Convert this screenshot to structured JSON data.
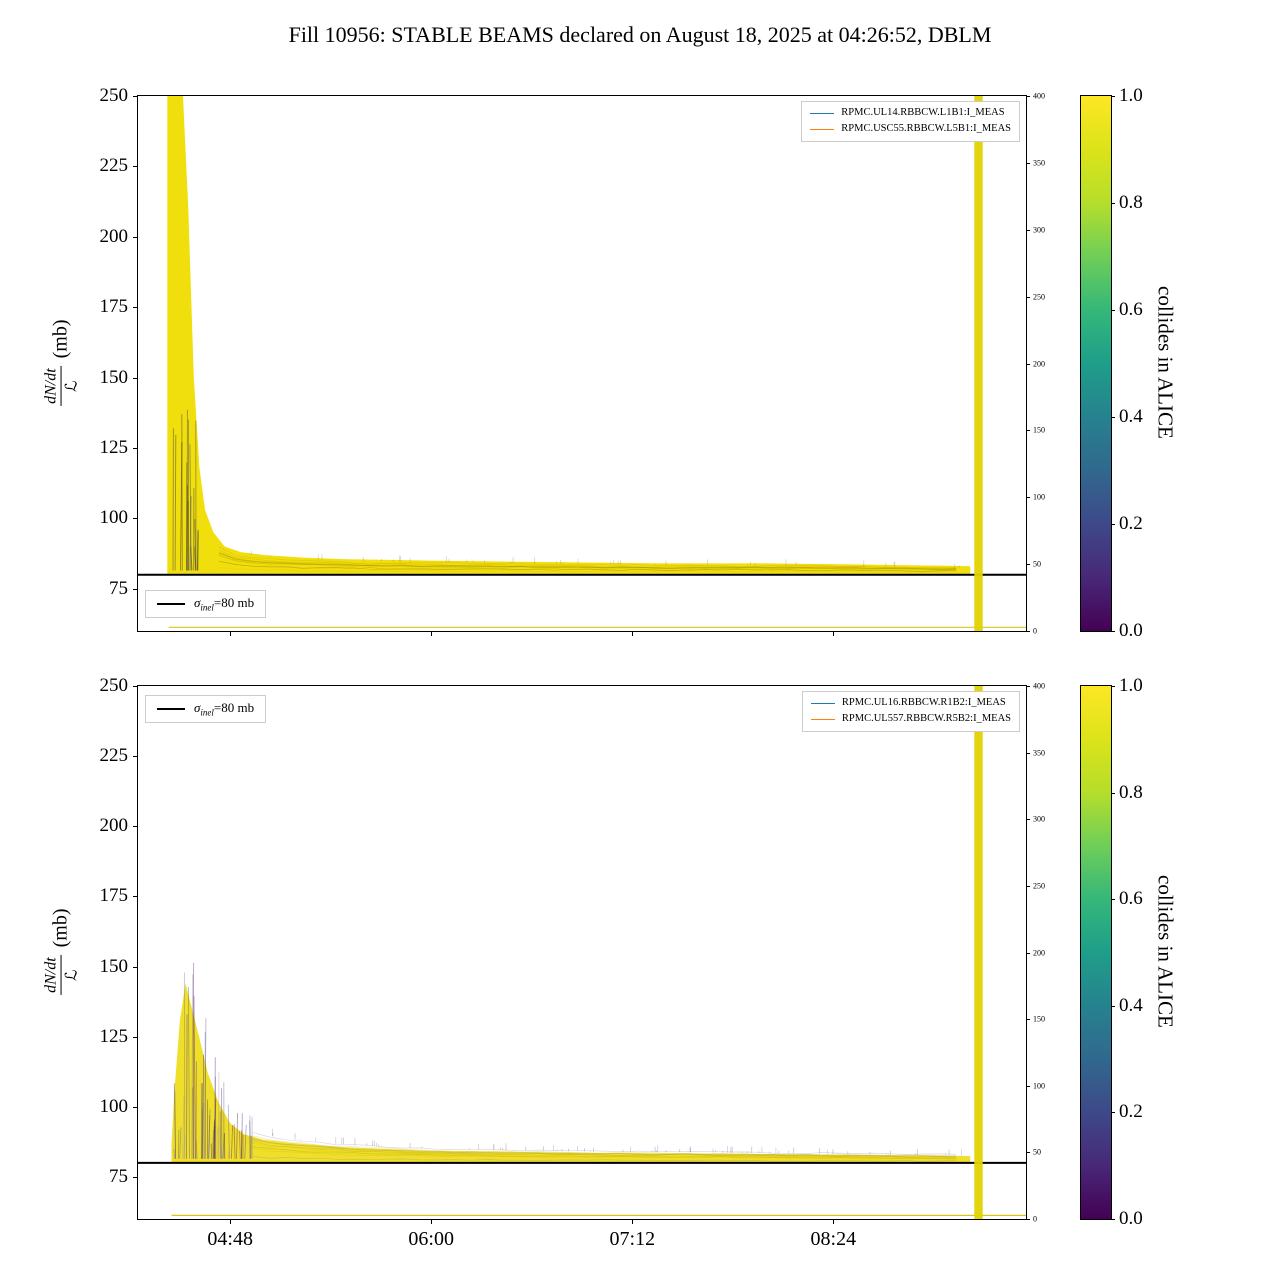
{
  "title": "Fill 10956: STABLE BEAMS declared on August 18, 2025 at 04:26:52, DBLM",
  "ylabel": {
    "numerator": "dN/dt",
    "denominator": "ℒ",
    "unit": "(mb)"
  },
  "sigma_legend": {
    "sigma": "σ",
    "subscript": "inel",
    "suffix": "=80 mb"
  },
  "colorbar": {
    "label": "collides in ALICE",
    "ticks": [
      {
        "label": "1.0",
        "value": 1.0
      },
      {
        "label": "0.8",
        "value": 0.8
      },
      {
        "label": "0.6",
        "value": 0.6
      },
      {
        "label": "0.4",
        "value": 0.4
      },
      {
        "label": "0.2",
        "value": 0.2
      },
      {
        "label": "0.0",
        "value": 0.0
      }
    ],
    "colormap": "viridis",
    "stops": [
      "#440154",
      "#482878",
      "#3e4989",
      "#31688e",
      "#26828e",
      "#1f9e89",
      "#35b779",
      "#6ece58",
      "#b5de2b",
      "#dce319",
      "#fde725"
    ]
  },
  "chart_data": [
    {
      "id": "top",
      "type": "line",
      "title": "",
      "xlabel": "",
      "x_axis": {
        "xlim_minutes": [
          255,
          573
        ],
        "ticks": [
          {
            "label": "04:48",
            "minutes": 288
          },
          {
            "label": "06:00",
            "minutes": 360
          },
          {
            "label": "07:12",
            "minutes": 432
          },
          {
            "label": "08:24",
            "minutes": 504
          }
        ],
        "show_labels": false
      },
      "y_axis": {
        "ylim": [
          60,
          250
        ],
        "ticks": [
          75,
          100,
          125,
          150,
          175,
          200,
          225,
          250
        ]
      },
      "right_axis": {
        "ylim": [
          0,
          400
        ],
        "ticks": [
          0,
          50,
          100,
          150,
          200,
          250,
          300,
          350,
          400
        ]
      },
      "series": [
        {
          "name": "RPMC.UL14.RBBCW.L1B1:I_MEAS",
          "color": "#1f77b4"
        },
        {
          "name": "RPMC.USC55.RBBCW.L5B1:I_MEAS",
          "color": "#ff7f0e"
        }
      ],
      "sigma_mb": 80,
      "grid": false,
      "peak": {
        "time": "≈04:27",
        "value": ">250 (clipped at top)"
      },
      "plateau_mb": 83,
      "envelope": {
        "t": [
          265.5,
          266,
          268,
          271,
          273,
          275,
          277,
          279,
          282,
          286,
          292,
          300,
          315,
          330,
          360,
          400,
          440,
          480,
          520,
          545,
          553
        ],
        "upper": [
          252,
          252,
          252,
          252,
          210,
          150,
          118,
          103,
          95,
          90,
          88,
          87,
          86,
          85.5,
          85,
          84.5,
          84,
          84,
          83.5,
          83.2,
          83
        ],
        "lower": 80.3
      },
      "fill_color": "#f0dc00",
      "fill_scale": 1.0,
      "strands": {
        "count": 18,
        "t0": 267,
        "t1": 276.5,
        "base": 90,
        "cap": 148,
        "above": 0,
        "pow": 1.1,
        "colors": [
          "#2b2b45",
          "#3a3a55",
          "#141426"
        ],
        "opacity": 0.45,
        "width": 0.9
      },
      "streaks": {
        "count": 12,
        "t0": 284,
        "t1": 553,
        "colors": [
          "#d8c300",
          "#b89f00",
          "#8a7a10"
        ],
        "opacity": 0.3
      },
      "speckles": {
        "count": 45,
        "t0": 290,
        "t1": 552,
        "amp": 2.2,
        "colors": [
          "#6a5f00",
          "#454545"
        ],
        "opacity": 0.25
      },
      "baseline_trace": {
        "value": 61.3,
        "t0": 266,
        "t1": 573,
        "color": "#d9c51a"
      },
      "vertical_band": {
        "t_center": 556,
        "t_width": 3,
        "color": "#e2d200",
        "opacity": 0.95
      },
      "seed": 42
    },
    {
      "id": "bottom",
      "type": "line",
      "title": "",
      "xlabel": "",
      "x_axis": {
        "xlim_minutes": [
          255,
          573
        ],
        "ticks": [
          {
            "label": "04:48",
            "minutes": 288
          },
          {
            "label": "06:00",
            "minutes": 360
          },
          {
            "label": "07:12",
            "minutes": 432
          },
          {
            "label": "08:24",
            "minutes": 504
          }
        ],
        "show_labels": true
      },
      "y_axis": {
        "ylim": [
          60,
          250
        ],
        "ticks": [
          75,
          100,
          125,
          150,
          175,
          200,
          225,
          250
        ]
      },
      "right_axis": {
        "ylim": [
          0,
          400
        ],
        "ticks": [
          0,
          50,
          100,
          150,
          200,
          250,
          300,
          350,
          400
        ]
      },
      "series": [
        {
          "name": "RPMC.UL16.RBBCW.R1B2:I_MEAS",
          "color": "#1f77b4"
        },
        {
          "name": "RPMC.UL557.RBBCW.R5B2:I_MEAS",
          "color": "#ff7f0e"
        }
      ],
      "sigma_mb": 80,
      "grid": false,
      "peak": {
        "time": "≈04:32",
        "value": "≈162"
      },
      "plateau_mb": 83,
      "envelope": {
        "t": [
          267,
          268,
          270,
          272,
          274,
          277,
          280,
          284,
          288,
          293,
          300,
          310,
          330,
          360,
          420,
          480,
          520,
          545,
          553
        ],
        "upper": [
          88,
          112,
          145,
          162,
          152,
          137,
          121,
          107,
          98,
          93,
          90.5,
          89,
          87,
          85.5,
          84.5,
          84,
          83.5,
          83.2,
          83
        ],
        "lower": 80.3
      },
      "fill_color": "#eedd20",
      "fill_scale": 0.78,
      "strands": {
        "count": 60,
        "t0": 268,
        "t1": 296,
        "base": 84,
        "cap": 0,
        "above": 6,
        "pow": 1.0,
        "colors": [
          "#440154",
          "#482878",
          "#3e4989",
          "#6b6694",
          "#9a91b8"
        ],
        "opacity": 0.38,
        "width": 0.9
      },
      "streaks": {
        "count": 10,
        "t0": 296,
        "t1": 553,
        "colors": [
          "#c9b500",
          "#8a7cae",
          "#b0a400"
        ],
        "opacity": 0.3
      },
      "speckles": {
        "count": 80,
        "t0": 300,
        "t1": 552,
        "amp": 2.6,
        "colors": [
          "#5d538a",
          "#796fa0"
        ],
        "opacity": 0.35
      },
      "baseline_trace": {
        "value": 61.3,
        "t0": 267,
        "t1": 573,
        "color": "#d9c51a"
      },
      "vertical_band": {
        "t_center": 556,
        "t_width": 3,
        "color": "#e2d200",
        "opacity": 0.95
      },
      "seed": 77
    }
  ]
}
